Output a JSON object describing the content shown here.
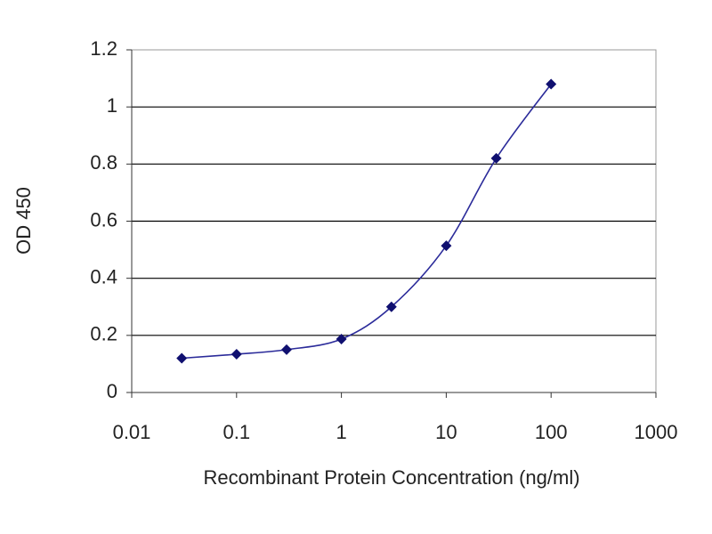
{
  "chart_data": {
    "type": "line",
    "x_label": "Recombinant Protein Concentration (ng/ml)",
    "y_label": "OD 450",
    "x": [
      0.03,
      0.1,
      0.3,
      1,
      3,
      10,
      30,
      100
    ],
    "values": [
      0.12,
      0.134,
      0.15,
      0.187,
      0.3,
      0.514,
      0.82,
      1.08
    ],
    "color": "#2b2b9a",
    "marker_color": "#101070",
    "marker": "diamond",
    "xscale": "log",
    "xlim": [
      0.01,
      1000
    ],
    "xticks": [
      0.01,
      0.1,
      1,
      10,
      100,
      1000
    ],
    "ylim": [
      0,
      1.2
    ],
    "yticks": [
      0,
      0.2,
      0.4,
      0.6,
      0.8,
      1,
      1.2
    ],
    "grid": true
  }
}
